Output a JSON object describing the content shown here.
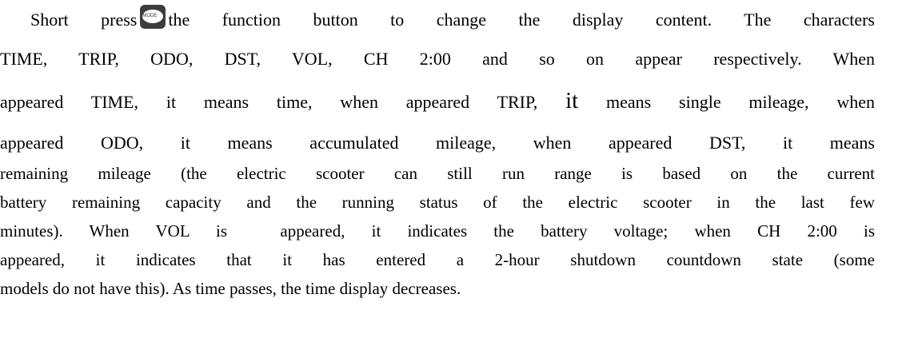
{
  "paragraph": {
    "icon_label": "MODE",
    "lines": [
      [
        "Short press",
        "the function button to change the display content. The characters"
      ],
      [
        "TIME, TRIP, ODO, DST, VOL, CH 2:00 and so on appear respectively. When"
      ],
      [
        "appeared TIME, it means time, when appeared TRIP, ",
        "it",
        " means single mileage, when"
      ],
      [
        "appeared ODO, it means accumulated mileage, when appeared DST, it means"
      ],
      [
        "remaining mileage (the electric scooter can still run range is based on the current"
      ],
      [
        "battery remaining capacity and the running status of the electric scooter in the last few"
      ],
      [
        "minutes). When VOL is  appeared, it indicates the battery voltage; when CH 2:00 is"
      ],
      [
        "appeared, it indicates that it has entered a 2-hour shutdown countdown state (some"
      ],
      [
        "models do not have this). As time passes, the time display decreases."
      ]
    ]
  }
}
